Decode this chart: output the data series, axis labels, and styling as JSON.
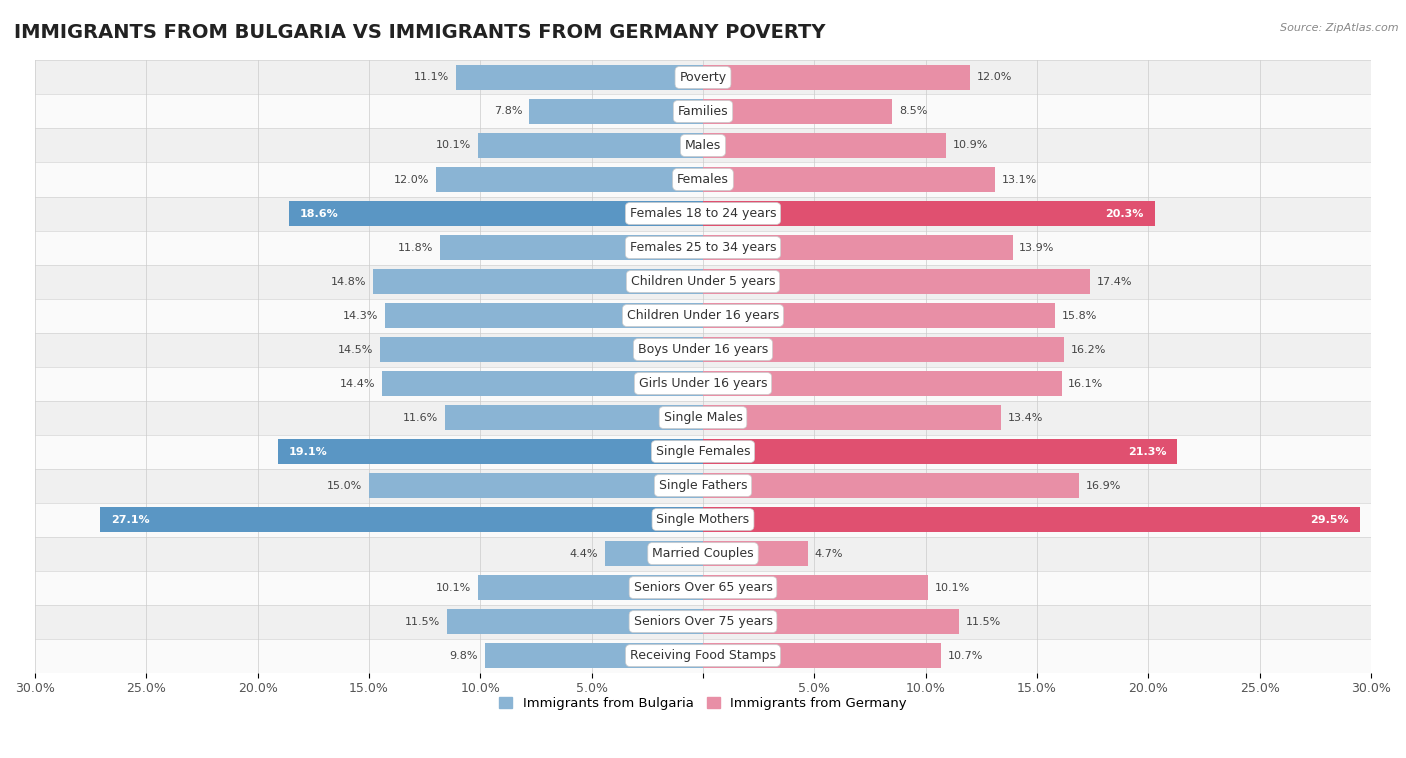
{
  "title": "IMMIGRANTS FROM BULGARIA VS IMMIGRANTS FROM GERMANY POVERTY",
  "source": "Source: ZipAtlas.com",
  "categories": [
    "Poverty",
    "Families",
    "Males",
    "Females",
    "Females 18 to 24 years",
    "Females 25 to 34 years",
    "Children Under 5 years",
    "Children Under 16 years",
    "Boys Under 16 years",
    "Girls Under 16 years",
    "Single Males",
    "Single Females",
    "Single Fathers",
    "Single Mothers",
    "Married Couples",
    "Seniors Over 65 years",
    "Seniors Over 75 years",
    "Receiving Food Stamps"
  ],
  "bulgaria_values": [
    11.1,
    7.8,
    10.1,
    12.0,
    18.6,
    11.8,
    14.8,
    14.3,
    14.5,
    14.4,
    11.6,
    19.1,
    15.0,
    27.1,
    4.4,
    10.1,
    11.5,
    9.8
  ],
  "germany_values": [
    12.0,
    8.5,
    10.9,
    13.1,
    20.3,
    13.9,
    17.4,
    15.8,
    16.2,
    16.1,
    13.4,
    21.3,
    16.9,
    29.5,
    4.7,
    10.1,
    11.5,
    10.7
  ],
  "bulgaria_color": "#8ab4d4",
  "germany_color": "#e88fa6",
  "highlight_bulgaria_color": "#5a96c4",
  "highlight_germany_color": "#e05070",
  "highlight_rows": [
    4,
    11,
    13
  ],
  "axis_max": 30.0,
  "legend_label_bulgaria": "Immigrants from Bulgaria",
  "legend_label_germany": "Immigrants from Germany",
  "bg_color": "#ffffff",
  "row_bg_odd": "#f0f0f0",
  "row_bg_even": "#fafafa",
  "bar_height": 0.72,
  "title_fontsize": 14,
  "label_fontsize": 9,
  "value_fontsize": 8,
  "axis_tick_fontsize": 9,
  "major_ticks": [
    -30,
    -25,
    -20,
    -15,
    -10,
    -5,
    0,
    5,
    10,
    15,
    20,
    25,
    30
  ],
  "major_labels": [
    "30.0%",
    "25.0%",
    "20.0%",
    "15.0%",
    "10.0%",
    "5.0%",
    "0%",
    "5.0%",
    "10.0%",
    "15.0%",
    "20.0%",
    "25.0%",
    "30.0%"
  ]
}
